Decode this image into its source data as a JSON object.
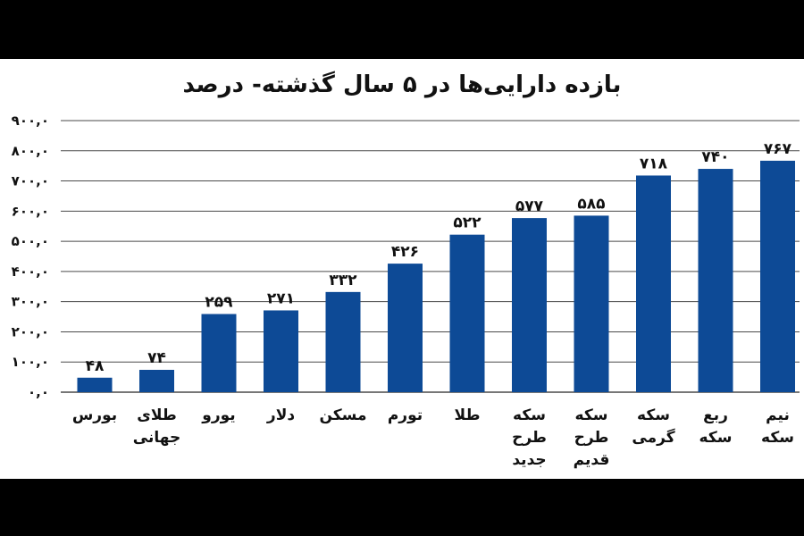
{
  "chart_data": {
    "type": "bar",
    "title": "بازده دارایی‌ها در ۵ سال گذشته- درصد",
    "categories": [
      [
        "بورس"
      ],
      [
        "طلای",
        "جهانی"
      ],
      [
        "یورو"
      ],
      [
        "دلار"
      ],
      [
        "مسکن"
      ],
      [
        "تورم"
      ],
      [
        "طلا"
      ],
      [
        "سکه",
        "طرح",
        "جدید"
      ],
      [
        "سکه",
        "طرح",
        "قدیم"
      ],
      [
        "سکه",
        "گرمی"
      ],
      [
        "ربع",
        "سکه"
      ],
      [
        "نیم",
        "سکه"
      ]
    ],
    "values": [
      48,
      74,
      259,
      271,
      332,
      426,
      522,
      577,
      585,
      718,
      740,
      767
    ],
    "value_labels": [
      "۴۸",
      "۷۴",
      "۲۵۹",
      "۲۷۱",
      "۳۳۲",
      "۴۲۶",
      "۵۲۲",
      "۵۷۷",
      "۵۸۵",
      "۷۱۸",
      "۷۴۰",
      "۷۶۷"
    ],
    "ylim": [
      0,
      900
    ],
    "yticks": [
      0,
      100,
      200,
      300,
      400,
      500,
      600,
      700,
      800,
      900
    ],
    "ytick_labels": [
      "۰,۰",
      "۱۰۰,۰",
      "۲۰۰,۰",
      "۳۰۰,۰",
      "۴۰۰,۰",
      "۵۰۰,۰",
      "۶۰۰,۰",
      "۷۰۰,۰",
      "۸۰۰,۰",
      "۹۰۰,۰"
    ],
    "grid": true,
    "bar_color": "#0d4a96",
    "grid_color": "#4a4a4a"
  }
}
